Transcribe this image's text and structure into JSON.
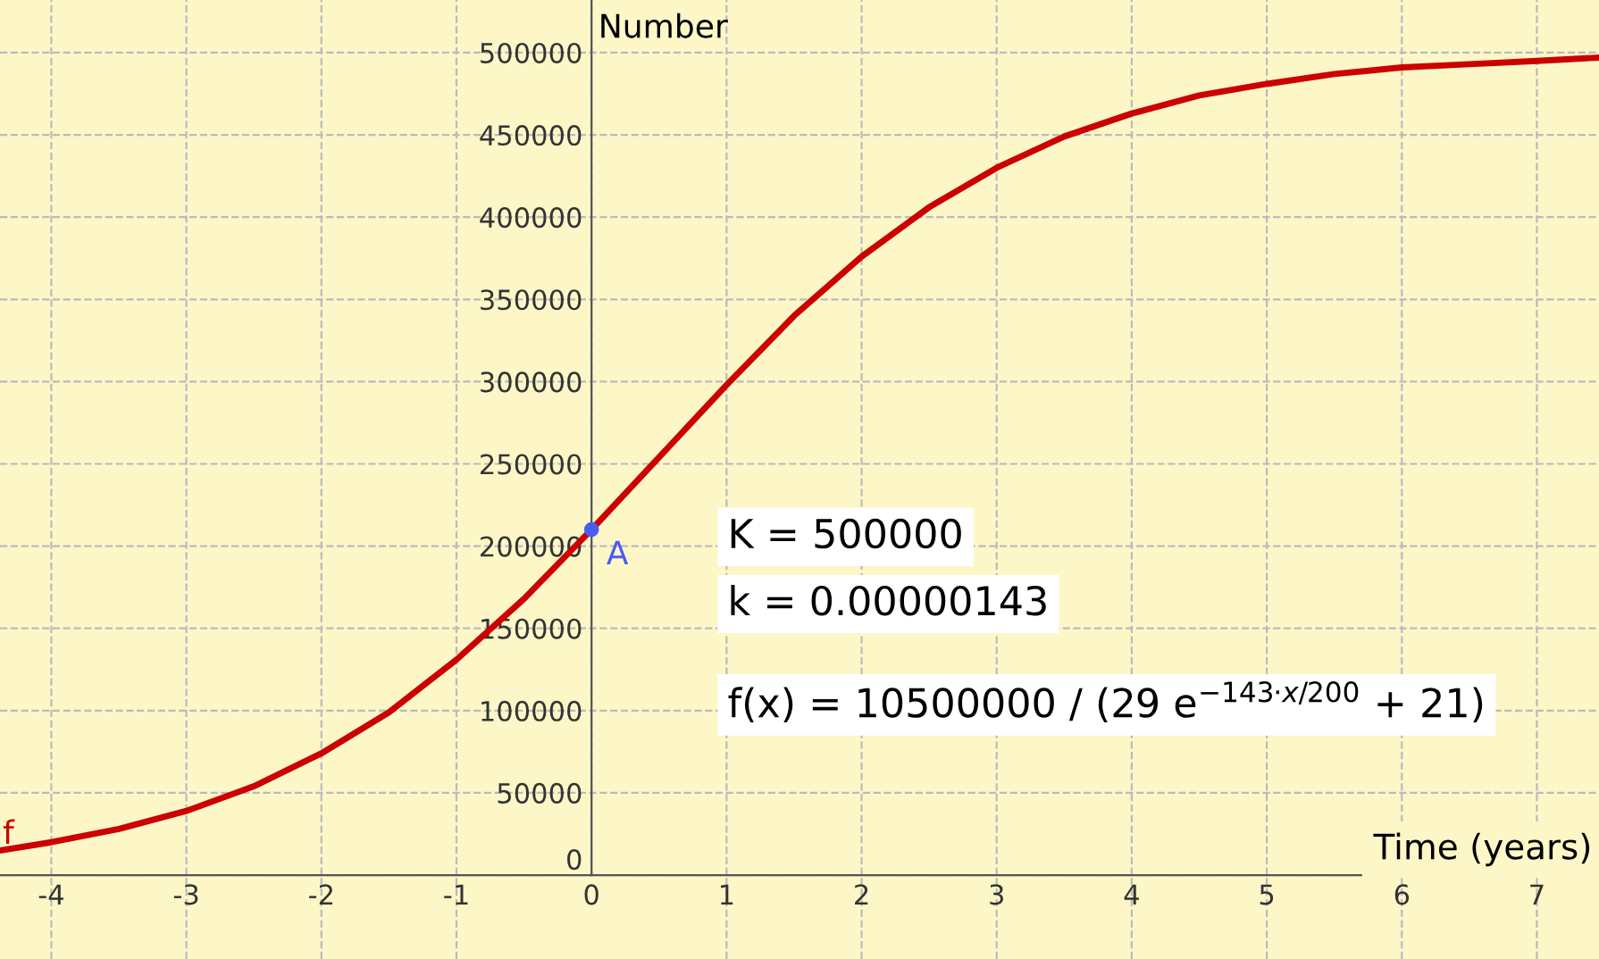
{
  "chart_data": {
    "type": "line",
    "xlabel": "Time (years)",
    "ylabel": "Number",
    "series": [
      {
        "name": "f",
        "color": "#cc0000",
        "x": [
          -4.38,
          -4,
          -3.5,
          -3,
          -2.5,
          -2,
          -1.5,
          -1,
          -0.5,
          0,
          0.5,
          1,
          1.5,
          2,
          2.5,
          3,
          3.5,
          4,
          4.5,
          5,
          5.5,
          6,
          6.5,
          7,
          7.46
        ],
        "values": [
          15000,
          20000,
          28000,
          39000,
          54000,
          74000,
          99000,
          131000,
          168000,
          210000,
          254000,
          298000,
          340000,
          376000,
          406000,
          430000,
          449000,
          463000,
          474000,
          481000,
          487000,
          491000,
          493000,
          495000,
          497000
        ]
      },
      {
        "type": "scatter",
        "color": "#4a5cf0",
        "x": [
          0
        ],
        "values": [
          210000
        ]
      }
    ],
    "annotations": [
      {
        "text": "A",
        "x": 0,
        "y": 210000
      },
      "K = 500000",
      "k = 0.00000143",
      "f(x) = 10500000 / (29 e$^{−143·x/200}$ + 21)"
    ],
    "xlim": [
      -4.38,
      7.46
    ],
    "ylim": [
      -51000,
      532000
    ],
    "xticks": [
      -4,
      -3,
      -2,
      -1,
      0,
      1,
      2,
      3,
      4,
      5,
      6,
      7
    ],
    "yticks": [
      0,
      50000,
      100000,
      150000,
      200000,
      250000,
      300000,
      350000,
      400000,
      450000,
      500000
    ],
    "grid": true,
    "legend": false,
    "line_style": "solid"
  }
}
